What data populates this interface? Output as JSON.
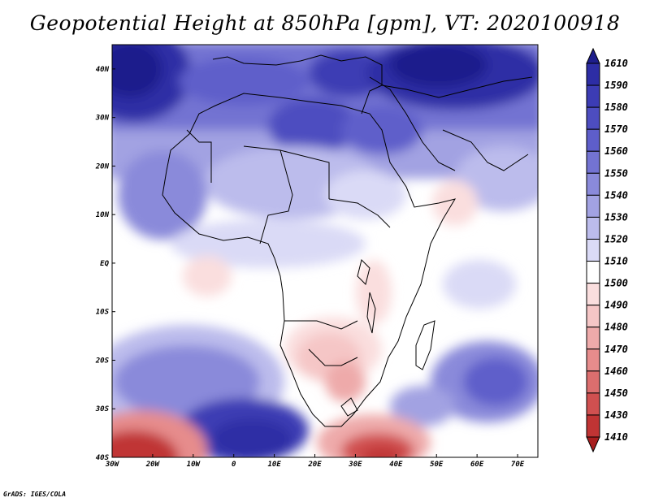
{
  "title": "Geopotential Height at 850hPa [gpm], VT: 2020100918",
  "credit": "GrADS: IGES/COLA",
  "map": {
    "region": "Africa",
    "lon_range": [
      -30,
      75
    ],
    "lat_range": [
      -40,
      45
    ],
    "lon_ticks": [
      "30W",
      "20W",
      "10W",
      "0",
      "10E",
      "20E",
      "30E",
      "40E",
      "50E",
      "60E",
      "70E"
    ],
    "lat_ticks": [
      "40N",
      "30N",
      "20N",
      "10N",
      "EQ",
      "10S",
      "20S",
      "30S",
      "40S"
    ]
  },
  "colorbar": {
    "levels": [
      "1610",
      "1590",
      "1580",
      "1570",
      "1560",
      "1550",
      "1540",
      "1530",
      "1520",
      "1510",
      "1500",
      "1490",
      "1480",
      "1470",
      "1460",
      "1450",
      "1430",
      "1410"
    ],
    "colors": [
      "#1e1e8c",
      "#2d2da5",
      "#3c3cb4",
      "#4d4dc0",
      "#5e5eca",
      "#7373d2",
      "#8a8ada",
      "#a2a2e2",
      "#bcbcec",
      "#dadaf6",
      "#ffffff",
      "#fadede",
      "#f5c6c6",
      "#eeaaaa",
      "#e68c8c",
      "#dc6e6e",
      "#d05050",
      "#c03434",
      "#a81e1e"
    ]
  }
}
